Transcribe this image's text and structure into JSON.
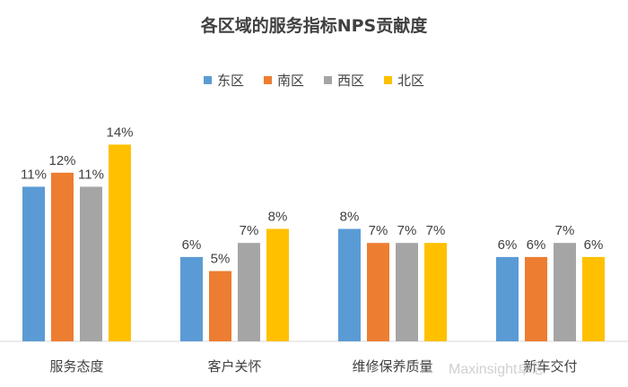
{
  "chart_data": {
    "type": "bar",
    "title": "各区域的服务指标NPS贡献度",
    "categories": [
      "服务态度",
      "客户关怀",
      "维修保养质量",
      "新车交付"
    ],
    "series": [
      {
        "name": "东区",
        "color": "#5B9BD5",
        "values": [
          11,
          6,
          8,
          6
        ],
        "labels": [
          "11%",
          "6%",
          "8%",
          "6%"
        ]
      },
      {
        "name": "南区",
        "color": "#ED7D31",
        "values": [
          12,
          5,
          7,
          6
        ],
        "labels": [
          "12%",
          "5%",
          "7%",
          "6%"
        ]
      },
      {
        "name": "西区",
        "color": "#A5A5A5",
        "values": [
          11,
          7,
          7,
          7
        ],
        "labels": [
          "11%",
          "7%",
          "7%",
          "7%"
        ]
      },
      {
        "name": "北区",
        "color": "#FFC000",
        "values": [
          14,
          8,
          7,
          6
        ],
        "labels": [
          "14%",
          "8%",
          "7%",
          "6%"
        ]
      }
    ],
    "ylim": [
      0,
      15
    ],
    "legend": "top-center",
    "grid": false
  },
  "watermark": "Maxinsight卓思"
}
